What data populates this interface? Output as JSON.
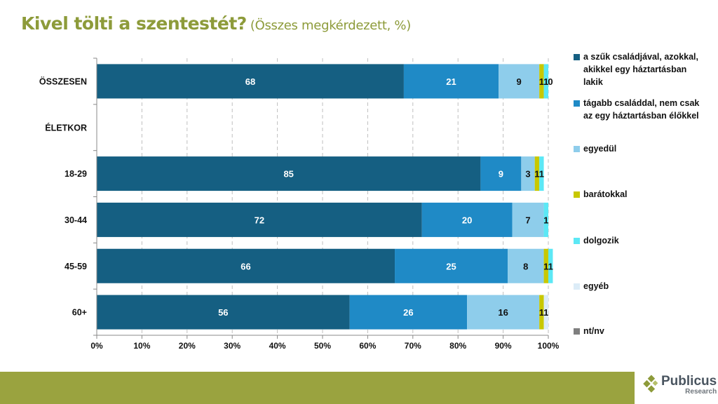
{
  "header": {
    "title": "Kivel tölti a szentestét?",
    "subtitle": "(Összes megkérdezett, %)"
  },
  "footer": {
    "logo_name": "Publicus",
    "logo_sub": "Research"
  },
  "chart_data": {
    "type": "bar",
    "orientation": "horizontal",
    "stacked": "100%",
    "title": "Kivel tölti a szentestét?",
    "subtitle": "(Összes megkérdezett, %)",
    "categories": [
      "ÖSSZESEN",
      "ÉLETKOR",
      "18-29",
      "30-44",
      "45-59",
      "60+"
    ],
    "xlim": [
      0,
      100
    ],
    "xticks": [
      "0%",
      "10%",
      "20%",
      "30%",
      "40%",
      "50%",
      "60%",
      "70%",
      "80%",
      "90%",
      "100%"
    ],
    "grid": "vertical dashed",
    "legend_position": "right",
    "series": [
      {
        "name": "a szűk családjával, azokkal, akikkel egy háztartásban lakik",
        "color": "#155f82",
        "label_color": "#ffffff",
        "values": [
          68,
          null,
          85,
          72,
          66,
          56
        ],
        "labels": [
          "68",
          "",
          "85",
          "72",
          "66",
          "56"
        ]
      },
      {
        "name": "tágabb családdal, nem csak az egy háztartásban élőkkel",
        "color": "#1f8ac6",
        "label_color": "#ffffff",
        "values": [
          21,
          null,
          9,
          20,
          25,
          26
        ],
        "labels": [
          "21",
          "",
          "9",
          "20",
          "25",
          "26"
        ]
      },
      {
        "name": "egyedül",
        "color": "#8ecdeb",
        "label_color": "#111111",
        "values": [
          9,
          null,
          3,
          7,
          8,
          16
        ],
        "labels": [
          "9",
          "",
          "3",
          "7",
          "8",
          "16"
        ]
      },
      {
        "name": "barátokkal",
        "color": "#c8c800",
        "label_color": "#111111",
        "values": [
          1,
          null,
          1,
          0,
          1,
          1
        ],
        "labels": [
          "1",
          "",
          "1",
          "",
          "1",
          "1"
        ]
      },
      {
        "name": "dolgozik",
        "color": "#5ce8f5",
        "label_color": "#111111",
        "values": [
          1,
          null,
          1,
          1,
          1,
          0
        ],
        "labels": [
          "1",
          "",
          "1",
          "1",
          "1",
          ""
        ]
      },
      {
        "name": "egyéb",
        "color": "#dcecf7",
        "label_color": "#111111",
        "values": [
          0,
          null,
          0,
          0,
          0,
          1
        ],
        "labels": [
          "0",
          "",
          "",
          "",
          "",
          "1"
        ]
      },
      {
        "name": "nt/nv",
        "color": "#7f7f7f",
        "label_color": "#111111",
        "values": [
          0,
          null,
          0,
          0,
          0,
          0
        ],
        "labels": [
          "",
          "",
          "",
          "",
          "",
          ""
        ]
      }
    ]
  }
}
